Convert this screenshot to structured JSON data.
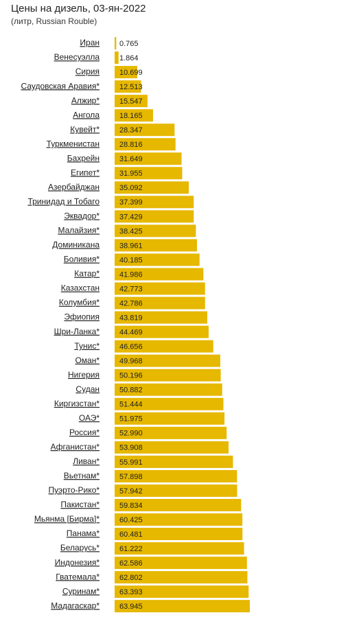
{
  "chart_data": {
    "type": "bar",
    "orientation": "horizontal",
    "title": "Цены на дизель, 03-ян-2022",
    "subtitle": "(литр, Russian Rouble)",
    "color": "#e6b800",
    "categories": [
      "Иран",
      "Венесуэлла",
      "Сирия",
      "Саудовская Аравия*",
      "Алжир*",
      "Ангола",
      "Кувейт*",
      "Туркменистан",
      "Бахрейн",
      "Египет*",
      "Азербайджан",
      "Тринидад и Тобаго",
      "Эквадор*",
      "Малайзия*",
      "Доминикана",
      "Боливия*",
      "Катар*",
      "Казахстан",
      "Колумбия*",
      "Эфиопия",
      "Шри-Ланка*",
      "Тунис*",
      "Оман*",
      "Нигерия",
      "Судан",
      "Киргизстан*",
      "ОАЭ*",
      "Россия*",
      "Афганистан*",
      "Ливан*",
      "Вьетнам*",
      "Пуэрто-Рико*",
      "Пакистан*",
      "Мьянма [Бирма]*",
      "Панама*",
      "Беларусь*",
      "Индонезия*",
      "Гватемала*",
      "Суринам*",
      "Мадагаскар*"
    ],
    "values": [
      0.765,
      1.864,
      10.699,
      12.513,
      15.547,
      18.165,
      28.347,
      28.816,
      31.649,
      31.955,
      35.092,
      37.399,
      37.429,
      38.425,
      38.961,
      40.185,
      41.986,
      42.773,
      42.786,
      43.819,
      44.469,
      46.656,
      49.968,
      50.196,
      50.882,
      51.444,
      51.975,
      52.99,
      53.908,
      55.991,
      57.898,
      57.942,
      59.834,
      60.425,
      60.481,
      61.222,
      62.586,
      62.802,
      63.393,
      63.945
    ],
    "value_labels": [
      "0.765",
      "1.864",
      "10.699",
      "12.513",
      "15.547",
      "18.165",
      "28.347",
      "28.816",
      "31.649",
      "31.955",
      "35.092",
      "37.399",
      "37.429",
      "38.425",
      "38.961",
      "40.185",
      "41.986",
      "42.773",
      "42.786",
      "43.819",
      "44.469",
      "46.656",
      "49.968",
      "50.196",
      "50.882",
      "51.444",
      "51.975",
      "52.990",
      "53.908",
      "55.991",
      "57.898",
      "57.942",
      "59.834",
      "60.425",
      "60.481",
      "61.222",
      "62.586",
      "62.802",
      "63.393",
      "63.945"
    ]
  }
}
